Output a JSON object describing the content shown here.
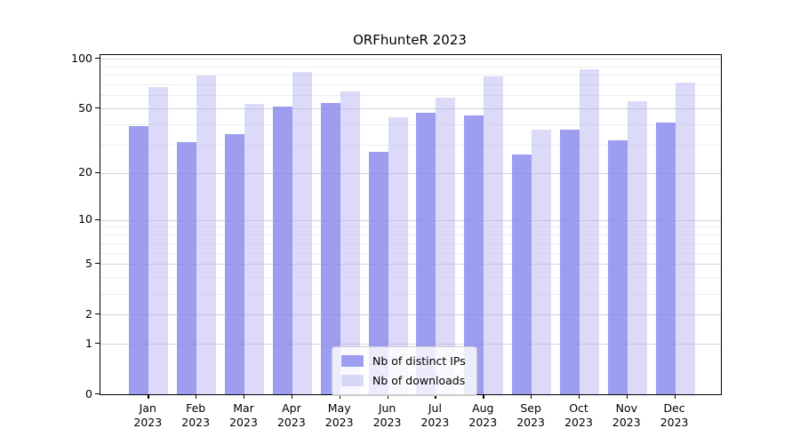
{
  "title": "ORFhunteR 2023",
  "chart_data": {
    "type": "bar",
    "title": "ORFhunteR 2023",
    "y_scale": "log1p",
    "grid": "on",
    "legend_position": "lower center",
    "year": "2023",
    "categories": [
      "Jan",
      "Feb",
      "Mar",
      "Apr",
      "May",
      "Jun",
      "Jul",
      "Aug",
      "Sep",
      "Oct",
      "Nov",
      "Dec"
    ],
    "series": [
      {
        "name": "Nb of distinct IPs",
        "color": "rgba(134,134,238,0.8)",
        "values": [
          39,
          31,
          35,
          51,
          54,
          27,
          47,
          45,
          26,
          37,
          32,
          41
        ]
      },
      {
        "name": "Nb of downloads",
        "color": "rgba(176,176,242,0.45)",
        "values": [
          67,
          79,
          53,
          83,
          63,
          44,
          58,
          78,
          37,
          86,
          55,
          72
        ]
      }
    ],
    "ylim": [
      0,
      100
    ],
    "y_major_ticks": [
      0,
      1,
      2,
      5,
      10,
      20,
      50,
      100
    ],
    "y_minor_ticks": [
      3,
      4,
      6,
      7,
      8,
      9,
      30,
      40,
      60,
      70,
      80,
      90
    ],
    "axis_color": "#000000",
    "major_grid_color": "#d4d4d4",
    "minor_grid_color": "#ededed"
  }
}
